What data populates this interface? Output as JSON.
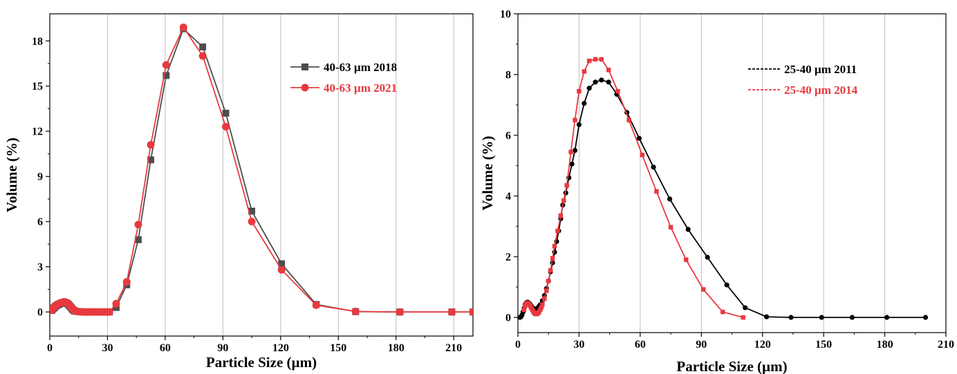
{
  "chart_data": [
    {
      "type": "line",
      "xlabel": "Particle Size (µm)",
      "ylabel": "Volume (%)",
      "xlim": [
        0,
        220
      ],
      "ylim": [
        -1.6,
        19.8
      ],
      "xticks": [
        0,
        30,
        60,
        90,
        120,
        150,
        180,
        210
      ],
      "yticks": [
        0,
        3,
        6,
        9,
        12,
        15,
        18
      ],
      "grid": "vertical",
      "legend_position": "top-right",
      "series": [
        {
          "name": "40-63 µm 2018",
          "color": "#4d4d4d",
          "marker": "square",
          "x": [
            1,
            1.5,
            2,
            2.5,
            3,
            3.5,
            4,
            4.5,
            5,
            5.5,
            6,
            6.5,
            7,
            7.5,
            8,
            8.5,
            9,
            9.5,
            10,
            10.5,
            11,
            11.5,
            12,
            12.5,
            13,
            14,
            15,
            16,
            17,
            18,
            19,
            20,
            21,
            22,
            23,
            24,
            25,
            26,
            27,
            28,
            29,
            30,
            31,
            34.5,
            40,
            46,
            52.5,
            60.5,
            69.5,
            79.5,
            91.5,
            105,
            120.5,
            138.5,
            159,
            182,
            209,
            220
          ],
          "y": [
            0.1,
            0.2,
            0.25,
            0.3,
            0.38,
            0.42,
            0.47,
            0.5,
            0.53,
            0.56,
            0.58,
            0.6,
            0.62,
            0.63,
            0.62,
            0.6,
            0.57,
            0.52,
            0.45,
            0.38,
            0.3,
            0.22,
            0.15,
            0.1,
            0.06,
            0.03,
            0.02,
            0.01,
            0.01,
            0,
            0,
            0,
            0,
            0,
            0,
            0,
            0,
            0,
            0,
            0,
            0,
            0,
            0,
            0.3,
            1.8,
            4.8,
            10.1,
            15.7,
            18.8,
            17.6,
            13.2,
            6.7,
            3.2,
            0.5,
            0.02,
            0,
            0,
            0
          ]
        },
        {
          "name": "40-63 µm 2021",
          "color": "#e8393f",
          "marker": "circle",
          "x": [
            1,
            1.5,
            2,
            2.5,
            3,
            3.5,
            4,
            4.5,
            5,
            5.5,
            6,
            6.5,
            7,
            7.5,
            8,
            8.5,
            9,
            9.5,
            10,
            10.5,
            11,
            11.5,
            12,
            12.5,
            13,
            14,
            15,
            16,
            17,
            18,
            19,
            20,
            21,
            22,
            23,
            24,
            25,
            26,
            27,
            28,
            29,
            30,
            31,
            34.5,
            40,
            46,
            52.5,
            60.5,
            69.5,
            79.5,
            91.5,
            105,
            120.5,
            138.5,
            159,
            182,
            209,
            220
          ],
          "y": [
            0.12,
            0.22,
            0.28,
            0.34,
            0.4,
            0.45,
            0.5,
            0.54,
            0.57,
            0.6,
            0.62,
            0.64,
            0.66,
            0.67,
            0.66,
            0.64,
            0.6,
            0.55,
            0.48,
            0.4,
            0.32,
            0.24,
            0.17,
            0.11,
            0.07,
            0.04,
            0.02,
            0.01,
            0.01,
            0,
            0,
            0,
            0,
            0,
            0,
            0,
            0,
            0,
            0,
            0,
            0,
            0,
            0,
            0.55,
            2.0,
            5.8,
            11.1,
            16.4,
            18.9,
            17.0,
            12.3,
            6.0,
            2.8,
            0.45,
            0.03,
            0,
            0,
            0
          ]
        }
      ]
    },
    {
      "type": "line",
      "xlabel": "Particle Size (µm)",
      "ylabel": "Volume (%)",
      "xlim": [
        0,
        210
      ],
      "ylim": [
        -0.5,
        10
      ],
      "xticks": [
        0,
        30,
        60,
        90,
        120,
        150,
        180,
        210
      ],
      "yticks": [
        0,
        2,
        4,
        6,
        8,
        10
      ],
      "grid": "vertical",
      "legend_position": "top-right",
      "series": [
        {
          "name": "25-40 µm 2011",
          "color": "#000000",
          "marker": "circle",
          "x": [
            1,
            1.5,
            2,
            2.5,
            3,
            3.5,
            4,
            4.5,
            5,
            5.5,
            6,
            6.5,
            7,
            7.5,
            8,
            8.5,
            9,
            9.5,
            10,
            10.5,
            11,
            12,
            13,
            14,
            15,
            16,
            17,
            18,
            19,
            20,
            21,
            22,
            23.5,
            25,
            26.5,
            28,
            30,
            32.5,
            35,
            38,
            41,
            44.5,
            48.5,
            53.5,
            59.5,
            66.5,
            74.5,
            83.5,
            93,
            102.5,
            111.5,
            122,
            134,
            149,
            164,
            181,
            200
          ],
          "y": [
            0,
            0.02,
            0.08,
            0.18,
            0.3,
            0.42,
            0.48,
            0.5,
            0.5,
            0.47,
            0.43,
            0.38,
            0.33,
            0.3,
            0.28,
            0.27,
            0.28,
            0.3,
            0.33,
            0.37,
            0.42,
            0.55,
            0.72,
            0.95,
            1.2,
            1.5,
            1.8,
            2.15,
            2.5,
            2.85,
            3.25,
            3.7,
            4.1,
            4.6,
            5.05,
            5.5,
            6.35,
            7.05,
            7.55,
            7.75,
            7.82,
            7.75,
            7.35,
            6.75,
            5.9,
            4.95,
            3.9,
            2.9,
            1.98,
            1.07,
            0.32,
            0.02,
            0,
            0,
            0,
            0,
            0
          ]
        },
        {
          "name": "25-40 µm 2014",
          "color": "#e8393f",
          "marker": "square",
          "x": [
            3,
            3.5,
            4,
            4.5,
            5,
            5.5,
            6,
            6.5,
            7,
            7.5,
            8,
            8.5,
            9,
            9.5,
            10,
            10.5,
            11,
            11.5,
            12,
            13,
            14,
            15,
            16,
            17,
            18,
            19.5,
            21,
            22.5,
            24,
            26,
            28,
            30,
            32.5,
            35,
            38,
            41,
            44.5,
            49,
            54.5,
            61,
            68,
            75,
            82.5,
            91,
            100.5,
            110.5
          ],
          "y": [
            0.25,
            0.38,
            0.45,
            0.48,
            0.47,
            0.43,
            0.38,
            0.32,
            0.26,
            0.2,
            0.15,
            0.12,
            0.11,
            0.12,
            0.15,
            0.2,
            0.26,
            0.33,
            0.42,
            0.62,
            0.88,
            1.2,
            1.55,
            1.95,
            2.35,
            2.85,
            3.35,
            3.85,
            4.35,
            5.45,
            6.5,
            7.45,
            8.1,
            8.45,
            8.5,
            8.5,
            8.15,
            7.45,
            6.5,
            5.35,
            4.15,
            2.97,
            1.9,
            0.92,
            0.18,
            0
          ]
        }
      ]
    }
  ]
}
